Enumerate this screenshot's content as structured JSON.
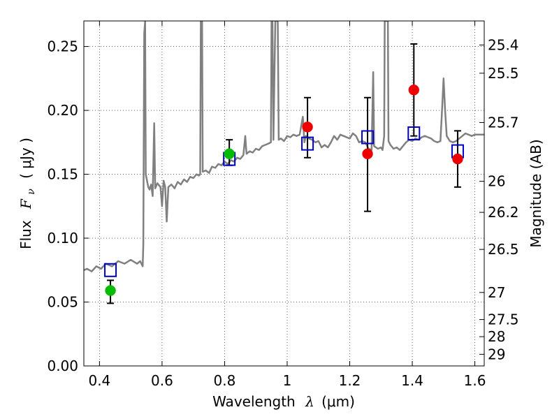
{
  "chart_data": {
    "type": "scatter",
    "xlabel_prefix": "Wavelength",
    "xlabel_symbol": "λ",
    "xlabel_unit": "(μm)",
    "ylabel_prefix": "Flux",
    "ylabel_symbol": "F",
    "ylabel_subscript": "ν",
    "ylabel_unit": "( μJy )",
    "y2label": "Magnitude (AB)",
    "xlim": [
      0.35,
      1.63
    ],
    "ylim": [
      0.0,
      0.27
    ],
    "grid": true,
    "x_ticks": [
      0.4,
      0.6,
      0.8,
      1.0,
      1.2,
      1.4,
      1.6
    ],
    "x_tick_labels": [
      "0.4",
      "0.6",
      "0.8",
      "1",
      "1.2",
      "1.4",
      "1.6"
    ],
    "y_ticks": [
      0.0,
      0.05,
      0.1,
      0.15,
      0.2,
      0.25
    ],
    "y_tick_labels": [
      "0.00",
      "0.05",
      "0.10",
      "0.15",
      "0.20",
      "0.25"
    ],
    "y2_ticks": [
      {
        "mag": "25.4",
        "flux": 0.2512
      },
      {
        "mag": "25.5",
        "flux": 0.2291
      },
      {
        "mag": "25.7",
        "flux": 0.1905
      },
      {
        "mag": "26",
        "flux": 0.1445
      },
      {
        "mag": "26.2",
        "flux": 0.1202
      },
      {
        "mag": "26.5",
        "flux": 0.0912
      },
      {
        "mag": "27",
        "flux": 0.0575
      },
      {
        "mag": "27.5",
        "flux": 0.0363
      },
      {
        "mag": "28",
        "flux": 0.0229
      },
      {
        "mag": "29",
        "flux": 0.0091
      }
    ],
    "colors": {
      "template": "#808080",
      "green": "#00bb00",
      "red": "#ee0000",
      "model": "#0000cc",
      "errorbar": "#000000"
    },
    "series": [
      {
        "values": [
          [
            0.35,
            0.075
          ],
          [
            0.36,
            0.076
          ],
          [
            0.375,
            0.074
          ],
          [
            0.39,
            0.078
          ],
          [
            0.405,
            0.076
          ],
          [
            0.42,
            0.08
          ],
          [
            0.44,
            0.078
          ],
          [
            0.46,
            0.082
          ],
          [
            0.48,
            0.08
          ],
          [
            0.5,
            0.083
          ],
          [
            0.52,
            0.08
          ],
          [
            0.53,
            0.082
          ],
          [
            0.538,
            0.078
          ],
          [
            0.54,
            0.095
          ],
          [
            0.543,
            0.26
          ],
          [
            0.546,
            0.27
          ],
          [
            0.548,
            0.15
          ],
          [
            0.552,
            0.145
          ],
          [
            0.556,
            0.14
          ],
          [
            0.56,
            0.138
          ],
          [
            0.565,
            0.142
          ],
          [
            0.57,
            0.133
          ],
          [
            0.575,
            0.19
          ],
          [
            0.578,
            0.139
          ],
          [
            0.585,
            0.143
          ],
          [
            0.595,
            0.14
          ],
          [
            0.6,
            0.125
          ],
          [
            0.605,
            0.145
          ],
          [
            0.61,
            0.14
          ],
          [
            0.615,
            0.113
          ],
          [
            0.62,
            0.14
          ],
          [
            0.63,
            0.142
          ],
          [
            0.64,
            0.139
          ],
          [
            0.65,
            0.144
          ],
          [
            0.66,
            0.142
          ],
          [
            0.67,
            0.146
          ],
          [
            0.68,
            0.144
          ],
          [
            0.69,
            0.148
          ],
          [
            0.7,
            0.147
          ],
          [
            0.71,
            0.15
          ],
          [
            0.718,
            0.149
          ],
          [
            0.722,
            0.15
          ],
          [
            0.724,
            0.27
          ],
          [
            0.728,
            0.27
          ],
          [
            0.73,
            0.152
          ],
          [
            0.74,
            0.153
          ],
          [
            0.75,
            0.151
          ],
          [
            0.76,
            0.156
          ],
          [
            0.77,
            0.155
          ],
          [
            0.78,
            0.158
          ],
          [
            0.79,
            0.157
          ],
          [
            0.8,
            0.16
          ],
          [
            0.81,
            0.158
          ],
          [
            0.82,
            0.161
          ],
          [
            0.83,
            0.16
          ],
          [
            0.84,
            0.163
          ],
          [
            0.85,
            0.162
          ],
          [
            0.86,
            0.165
          ],
          [
            0.866,
            0.18
          ],
          [
            0.87,
            0.166
          ],
          [
            0.88,
            0.168
          ],
          [
            0.89,
            0.167
          ],
          [
            0.9,
            0.17
          ],
          [
            0.91,
            0.169
          ],
          [
            0.92,
            0.172
          ],
          [
            0.93,
            0.173
          ],
          [
            0.94,
            0.174
          ],
          [
            0.948,
            0.175
          ],
          [
            0.95,
            0.27
          ],
          [
            0.953,
            0.27
          ],
          [
            0.956,
            0.177
          ],
          [
            0.962,
            0.27
          ],
          [
            0.97,
            0.27
          ],
          [
            0.973,
            0.177
          ],
          [
            0.98,
            0.178
          ],
          [
            0.99,
            0.176
          ],
          [
            1.0,
            0.18
          ],
          [
            1.01,
            0.179
          ],
          [
            1.02,
            0.181
          ],
          [
            1.03,
            0.18
          ],
          [
            1.04,
            0.181
          ],
          [
            1.05,
            0.195
          ],
          [
            1.055,
            0.175
          ],
          [
            1.06,
            0.18
          ],
          [
            1.07,
            0.178
          ],
          [
            1.08,
            0.177
          ],
          [
            1.09,
            0.175
          ],
          [
            1.1,
            0.176
          ],
          [
            1.11,
            0.171
          ],
          [
            1.12,
            0.173
          ],
          [
            1.13,
            0.171
          ],
          [
            1.14,
            0.175
          ],
          [
            1.15,
            0.18
          ],
          [
            1.16,
            0.177
          ],
          [
            1.17,
            0.181
          ],
          [
            1.18,
            0.18
          ],
          [
            1.19,
            0.179
          ],
          [
            1.2,
            0.178
          ],
          [
            1.21,
            0.182
          ],
          [
            1.22,
            0.18
          ],
          [
            1.23,
            0.175
          ],
          [
            1.24,
            0.176
          ],
          [
            1.25,
            0.175
          ],
          [
            1.26,
            0.17
          ],
          [
            1.27,
            0.169
          ],
          [
            1.275,
            0.23
          ],
          [
            1.278,
            0.172
          ],
          [
            1.29,
            0.17
          ],
          [
            1.3,
            0.171
          ],
          [
            1.305,
            0.169
          ],
          [
            1.31,
            0.18
          ],
          [
            1.312,
            0.27
          ],
          [
            1.322,
            0.27
          ],
          [
            1.324,
            0.176
          ],
          [
            1.33,
            0.173
          ],
          [
            1.34,
            0.17
          ],
          [
            1.35,
            0.171
          ],
          [
            1.36,
            0.169
          ],
          [
            1.37,
            0.172
          ],
          [
            1.38,
            0.175
          ],
          [
            1.39,
            0.177
          ],
          [
            1.4,
            0.176
          ],
          [
            1.41,
            0.178
          ],
          [
            1.42,
            0.177
          ],
          [
            1.43,
            0.179
          ],
          [
            1.44,
            0.18
          ],
          [
            1.45,
            0.179
          ],
          [
            1.46,
            0.178
          ],
          [
            1.47,
            0.176
          ],
          [
            1.48,
            0.175
          ],
          [
            1.49,
            0.176
          ],
          [
            1.495,
            0.2
          ],
          [
            1.5,
            0.225
          ],
          [
            1.505,
            0.2
          ],
          [
            1.51,
            0.18
          ],
          [
            1.52,
            0.176
          ],
          [
            1.53,
            0.175
          ],
          [
            1.54,
            0.176
          ],
          [
            1.55,
            0.178
          ],
          [
            1.56,
            0.18
          ],
          [
            1.57,
            0.182
          ],
          [
            1.58,
            0.181
          ],
          [
            1.59,
            0.18
          ],
          [
            1.6,
            0.181
          ],
          [
            1.61,
            0.181
          ],
          [
            1.63,
            0.181
          ]
        ]
      },
      {
        "x": [
          0.435,
          0.815
        ],
        "y": [
          0.059,
          0.166
        ],
        "yerr_low": [
          0.049,
          0.157
        ],
        "yerr_high": [
          0.067,
          0.177
        ]
      },
      {
        "x": [
          1.065,
          1.257,
          1.405,
          1.545
        ],
        "y": [
          0.187,
          0.166,
          0.216,
          0.162
        ],
        "yerr_low": [
          0.163,
          0.121,
          0.18,
          0.14
        ],
        "yerr_high": [
          0.21,
          0.21,
          0.252,
          0.184
        ]
      },
      {
        "x": [
          0.435,
          0.815,
          1.065,
          1.257,
          1.405,
          1.545
        ],
        "y": [
          0.075,
          0.162,
          0.174,
          0.179,
          0.182,
          0.168
        ]
      }
    ]
  }
}
